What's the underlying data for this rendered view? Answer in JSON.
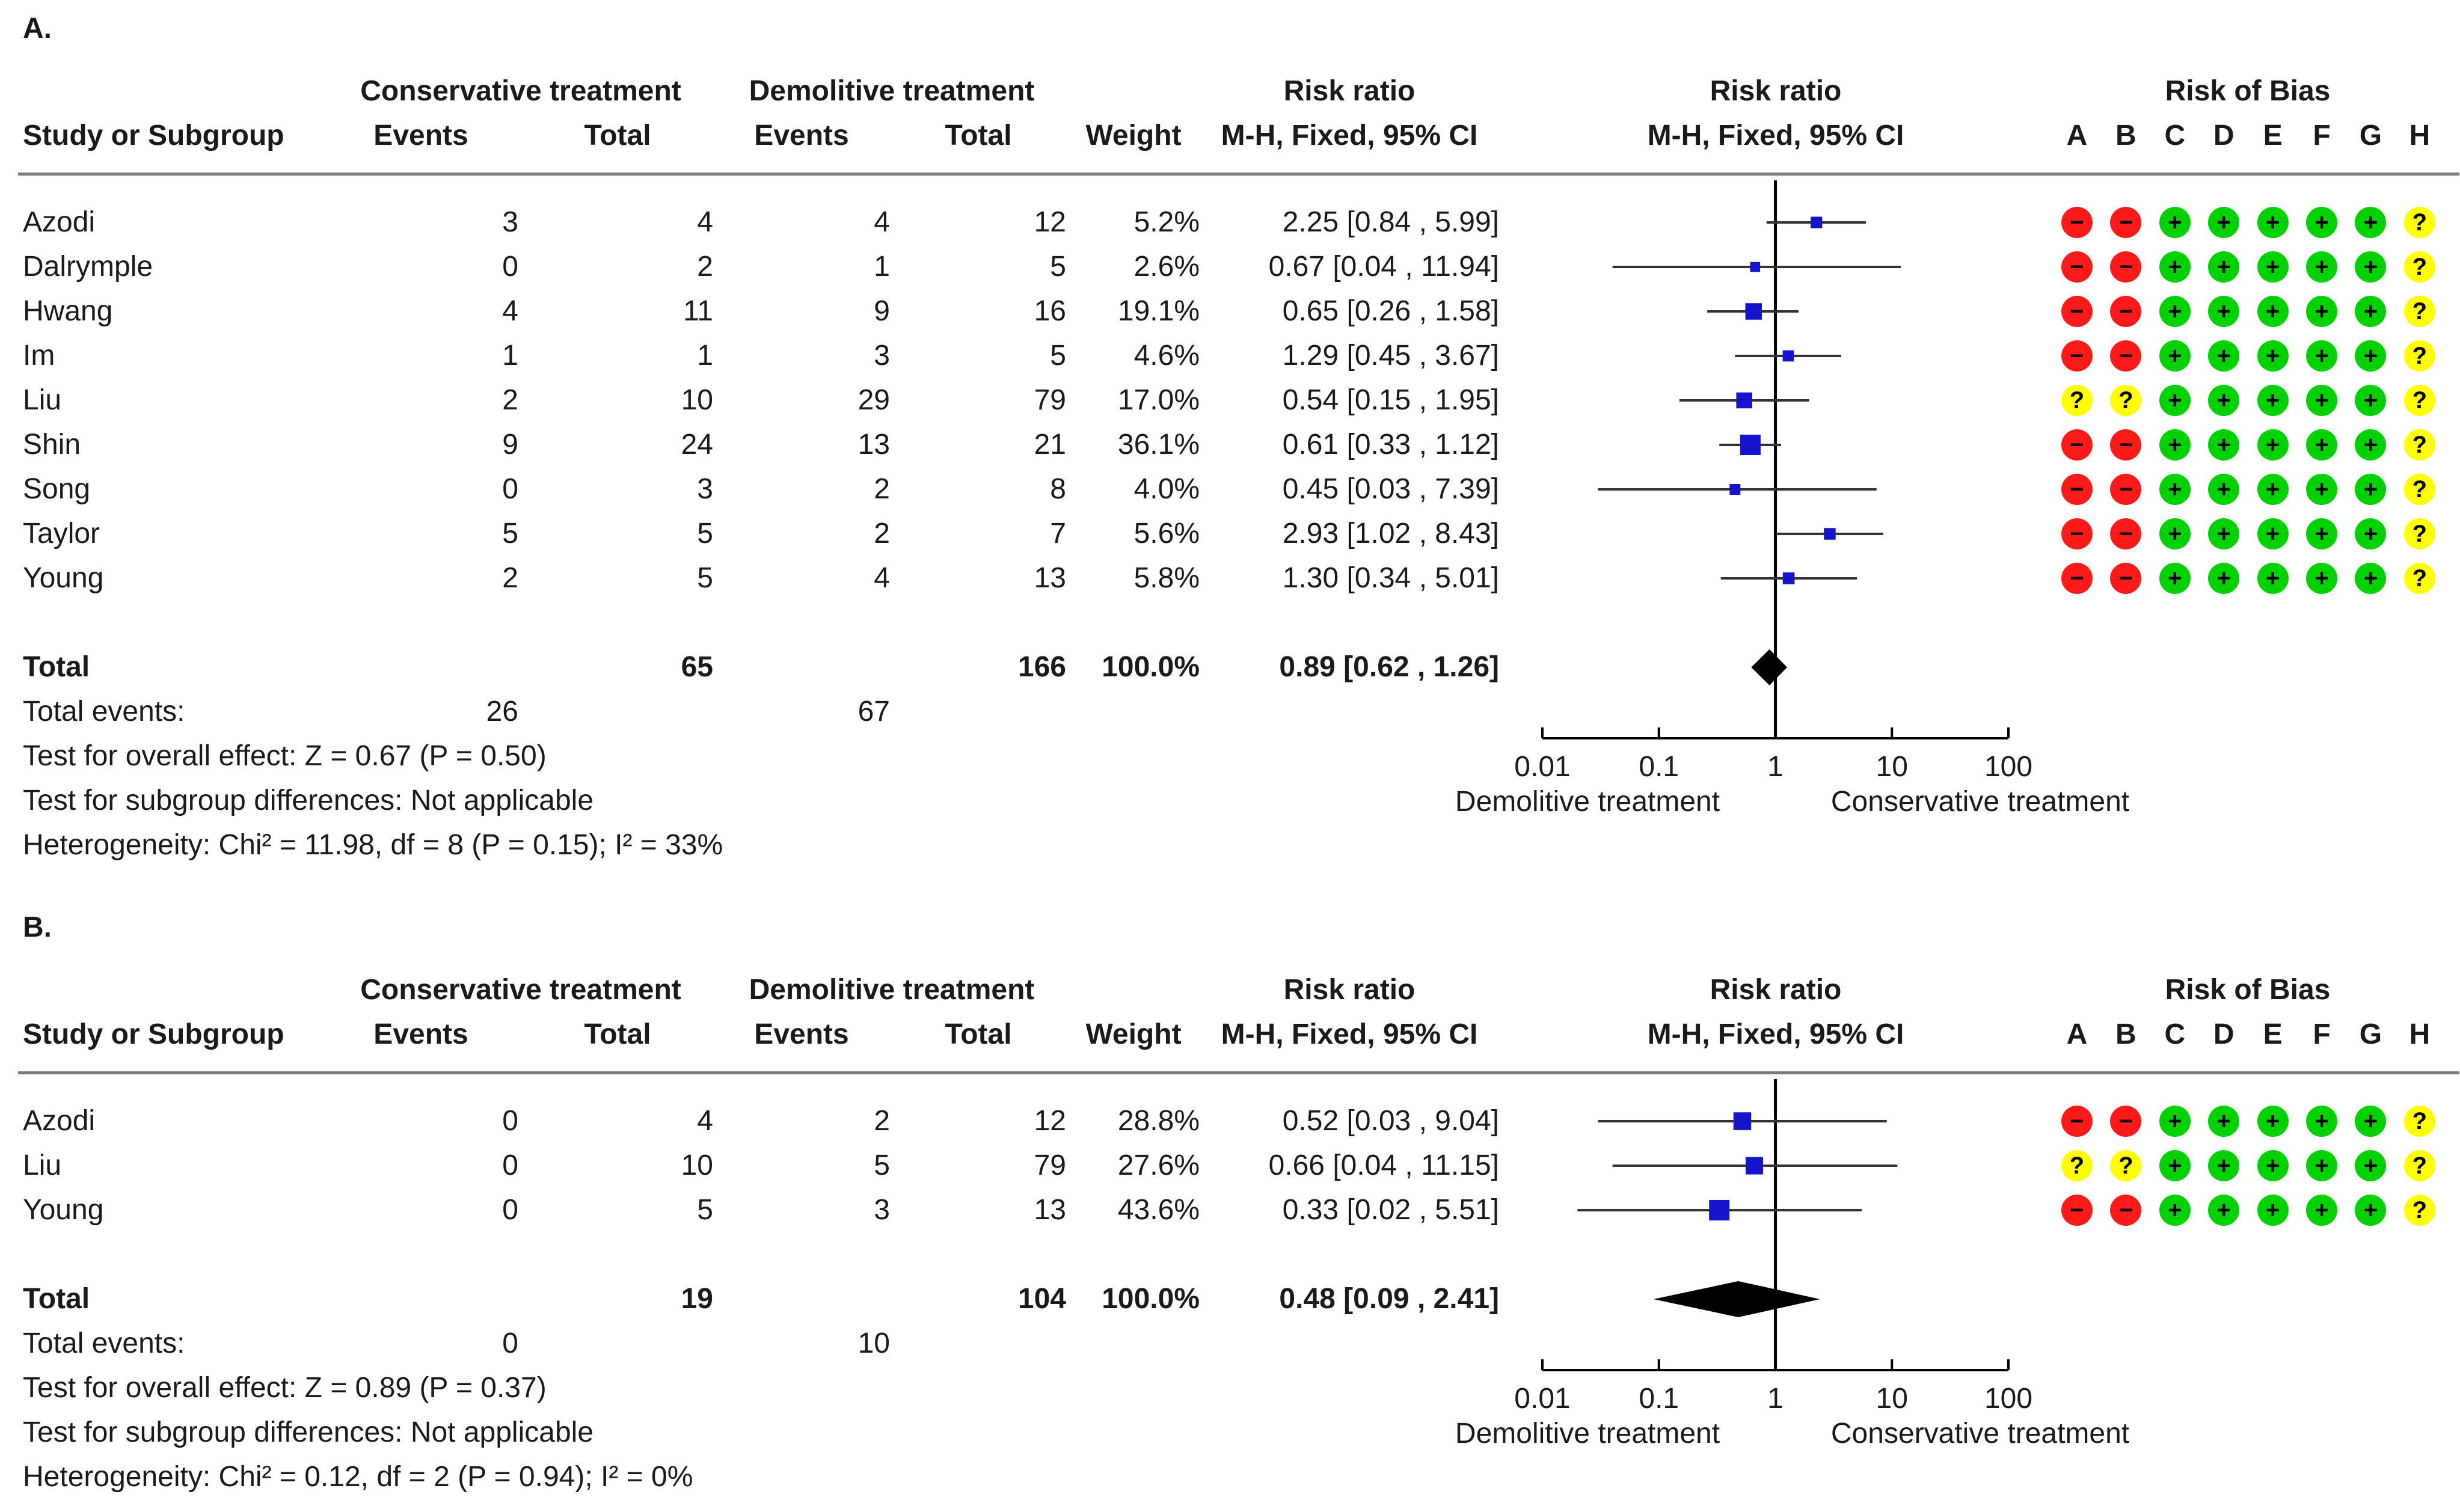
{
  "panels": [
    {
      "id": "A",
      "label": "A.",
      "headers": {
        "group1": "Conservative treatment",
        "group2": "Demolitive treatment",
        "risk_ratio_top": "Risk ratio",
        "plot_top": "Risk ratio",
        "bias_top": "Risk of Bias",
        "study": "Study or Subgroup",
        "events1": "Events",
        "total1": "Total",
        "events2": "Events",
        "total2": "Total",
        "weight": "Weight",
        "method": "M-H, Fixed, 95% CI",
        "plot_method": "M-H, Fixed, 95% CI",
        "bias_cols": [
          "A",
          "B",
          "C",
          "D",
          "E",
          "F",
          "G",
          "H"
        ]
      },
      "studies": [
        {
          "name": "Azodi",
          "e1": "3",
          "n1": "4",
          "e2": "4",
          "n2": "12",
          "weight": "5.2%",
          "ci": "2.25 [0.84 , 5.99]",
          "rr": 2.25,
          "lo": 0.84,
          "hi": 5.99,
          "w": 5.2,
          "bias": [
            "-",
            "-",
            "+",
            "+",
            "+",
            "+",
            "+",
            "?"
          ]
        },
        {
          "name": "Dalrymple",
          "e1": "0",
          "n1": "2",
          "e2": "1",
          "n2": "5",
          "weight": "2.6%",
          "ci": "0.67 [0.04 , 11.94]",
          "rr": 0.67,
          "lo": 0.04,
          "hi": 11.94,
          "w": 2.6,
          "bias": [
            "-",
            "-",
            "+",
            "+",
            "+",
            "+",
            "+",
            "?"
          ]
        },
        {
          "name": "Hwang",
          "e1": "4",
          "n1": "11",
          "e2": "9",
          "n2": "16",
          "weight": "19.1%",
          "ci": "0.65 [0.26 , 1.58]",
          "rr": 0.65,
          "lo": 0.26,
          "hi": 1.58,
          "w": 19.1,
          "bias": [
            "-",
            "-",
            "+",
            "+",
            "+",
            "+",
            "+",
            "?"
          ]
        },
        {
          "name": "Im",
          "e1": "1",
          "n1": "1",
          "e2": "3",
          "n2": "5",
          "weight": "4.6%",
          "ci": "1.29 [0.45 , 3.67]",
          "rr": 1.29,
          "lo": 0.45,
          "hi": 3.67,
          "w": 4.6,
          "bias": [
            "-",
            "-",
            "+",
            "+",
            "+",
            "+",
            "+",
            "?"
          ]
        },
        {
          "name": "Liu",
          "e1": "2",
          "n1": "10",
          "e2": "29",
          "n2": "79",
          "weight": "17.0%",
          "ci": "0.54 [0.15 , 1.95]",
          "rr": 0.54,
          "lo": 0.15,
          "hi": 1.95,
          "w": 17.0,
          "bias": [
            "?",
            "?",
            "+",
            "+",
            "+",
            "+",
            "+",
            "?"
          ]
        },
        {
          "name": "Shin",
          "e1": "9",
          "n1": "24",
          "e2": "13",
          "n2": "21",
          "weight": "36.1%",
          "ci": "0.61 [0.33 , 1.12]",
          "rr": 0.61,
          "lo": 0.33,
          "hi": 1.12,
          "w": 36.1,
          "bias": [
            "-",
            "-",
            "+",
            "+",
            "+",
            "+",
            "+",
            "?"
          ]
        },
        {
          "name": "Song",
          "e1": "0",
          "n1": "3",
          "e2": "2",
          "n2": "8",
          "weight": "4.0%",
          "ci": "0.45 [0.03 , 7.39]",
          "rr": 0.45,
          "lo": 0.03,
          "hi": 7.39,
          "w": 4.0,
          "bias": [
            "-",
            "-",
            "+",
            "+",
            "+",
            "+",
            "+",
            "?"
          ]
        },
        {
          "name": "Taylor",
          "e1": "5",
          "n1": "5",
          "e2": "2",
          "n2": "7",
          "weight": "5.6%",
          "ci": "2.93 [1.02 , 8.43]",
          "rr": 2.93,
          "lo": 1.02,
          "hi": 8.43,
          "w": 5.6,
          "bias": [
            "-",
            "-",
            "+",
            "+",
            "+",
            "+",
            "+",
            "?"
          ]
        },
        {
          "name": "Young",
          "e1": "2",
          "n1": "5",
          "e2": "4",
          "n2": "13",
          "weight": "5.8%",
          "ci": "1.30 [0.34 , 5.01]",
          "rr": 1.3,
          "lo": 0.34,
          "hi": 5.01,
          "w": 5.8,
          "bias": [
            "-",
            "-",
            "+",
            "+",
            "+",
            "+",
            "+",
            "?"
          ]
        }
      ],
      "total": {
        "label": "Total",
        "n1": "65",
        "n2": "166",
        "weight": "100.0%",
        "ci": "0.89 [0.62 , 1.26]",
        "rr": 0.89,
        "lo": 0.62,
        "hi": 1.26
      },
      "total_events": {
        "label": "Total events:",
        "e1": "26",
        "e2": "67"
      },
      "footer": [
        "Test for overall effect: Z = 0.67 (P = 0.50)",
        "Test for subgroup differences: Not applicable",
        "Heterogeneity: Chi² = 11.98, df = 8 (P = 0.15); I² = 33%"
      ],
      "axis": {
        "ticks": [
          "0.01",
          "0.1",
          "1",
          "10",
          "100"
        ],
        "left_label": "Demolitive treatment",
        "right_label": "Conservative treatment"
      }
    },
    {
      "id": "B",
      "label": "B.",
      "headers": {
        "group1": "Conservative treatment",
        "group2": "Demolitive treatment",
        "risk_ratio_top": "Risk ratio",
        "plot_top": "Risk ratio",
        "bias_top": "Risk of Bias",
        "study": "Study or Subgroup",
        "events1": "Events",
        "total1": "Total",
        "events2": "Events",
        "total2": "Total",
        "weight": "Weight",
        "method": "M-H, Fixed, 95% CI",
        "plot_method": "M-H, Fixed, 95% CI",
        "bias_cols": [
          "A",
          "B",
          "C",
          "D",
          "E",
          "F",
          "G",
          "H"
        ]
      },
      "studies": [
        {
          "name": "Azodi",
          "e1": "0",
          "n1": "4",
          "e2": "2",
          "n2": "12",
          "weight": "28.8%",
          "ci": "0.52 [0.03 , 9.04]",
          "rr": 0.52,
          "lo": 0.03,
          "hi": 9.04,
          "w": 28.8,
          "bias": [
            "-",
            "-",
            "+",
            "+",
            "+",
            "+",
            "+",
            "?"
          ]
        },
        {
          "name": "Liu",
          "e1": "0",
          "n1": "10",
          "e2": "5",
          "n2": "79",
          "weight": "27.6%",
          "ci": "0.66 [0.04 , 11.15]",
          "rr": 0.66,
          "lo": 0.04,
          "hi": 11.15,
          "w": 27.6,
          "bias": [
            "?",
            "?",
            "+",
            "+",
            "+",
            "+",
            "+",
            "?"
          ]
        },
        {
          "name": "Young",
          "e1": "0",
          "n1": "5",
          "e2": "3",
          "n2": "13",
          "weight": "43.6%",
          "ci": "0.33 [0.02 , 5.51]",
          "rr": 0.33,
          "lo": 0.02,
          "hi": 5.51,
          "w": 43.6,
          "bias": [
            "-",
            "-",
            "+",
            "+",
            "+",
            "+",
            "+",
            "?"
          ]
        }
      ],
      "total": {
        "label": "Total",
        "n1": "19",
        "n2": "104",
        "weight": "100.0%",
        "ci": "0.48 [0.09 , 2.41]",
        "rr": 0.48,
        "lo": 0.09,
        "hi": 2.41
      },
      "total_events": {
        "label": "Total events:",
        "e1": "0",
        "e2": "10"
      },
      "footer": [
        "Test for overall effect: Z = 0.89 (P = 0.37)",
        "Test for subgroup differences: Not applicable",
        "Heterogeneity: Chi² = 0.12, df = 2 (P = 0.94); I² = 0%"
      ],
      "axis": {
        "ticks": [
          "0.01",
          "0.1",
          "1",
          "10",
          "100"
        ],
        "left_label": "Demolitive treatment",
        "right_label": "Conservative treatment"
      }
    }
  ],
  "chart_data": [
    {
      "type": "forest",
      "title": "A.",
      "scale": "log",
      "xlim": [
        0.01,
        100
      ],
      "xticks": [
        0.01,
        0.1,
        1,
        10,
        100
      ],
      "xlabel_left": "Demolitive treatment",
      "xlabel_right": "Conservative treatment",
      "categories": [
        "Azodi",
        "Dalrymple",
        "Hwang",
        "Im",
        "Liu",
        "Shin",
        "Song",
        "Taylor",
        "Young"
      ],
      "series": [
        {
          "name": "risk_ratio",
          "values": [
            2.25,
            0.67,
            0.65,
            1.29,
            0.54,
            0.61,
            0.45,
            2.93,
            1.3
          ]
        },
        {
          "name": "ci_lower",
          "values": [
            0.84,
            0.04,
            0.26,
            0.45,
            0.15,
            0.33,
            0.03,
            1.02,
            0.34
          ]
        },
        {
          "name": "ci_upper",
          "values": [
            5.99,
            11.94,
            1.58,
            3.67,
            1.95,
            1.12,
            7.39,
            8.43,
            5.01
          ]
        },
        {
          "name": "weight_percent",
          "values": [
            5.2,
            2.6,
            19.1,
            4.6,
            17.0,
            36.1,
            4.0,
            5.6,
            5.8
          ]
        }
      ],
      "pooled": {
        "rr": 0.89,
        "lo": 0.62,
        "hi": 1.26
      }
    },
    {
      "type": "forest",
      "title": "B.",
      "scale": "log",
      "xlim": [
        0.01,
        100
      ],
      "xticks": [
        0.01,
        0.1,
        1,
        10,
        100
      ],
      "xlabel_left": "Demolitive treatment",
      "xlabel_right": "Conservative treatment",
      "categories": [
        "Azodi",
        "Liu",
        "Young"
      ],
      "series": [
        {
          "name": "risk_ratio",
          "values": [
            0.52,
            0.66,
            0.33
          ]
        },
        {
          "name": "ci_lower",
          "values": [
            0.03,
            0.04,
            0.02
          ]
        },
        {
          "name": "ci_upper",
          "values": [
            9.04,
            11.15,
            5.51
          ]
        },
        {
          "name": "weight_percent",
          "values": [
            28.8,
            27.6,
            43.6
          ]
        }
      ],
      "pooled": {
        "rr": 0.48,
        "lo": 0.09,
        "hi": 2.41
      }
    }
  ],
  "colors": {
    "marker": "#1414cc",
    "ci_line": "#333333",
    "diamond": "#000000",
    "bias_low": "#00d100",
    "bias_high": "#ff1a1a",
    "bias_unclear": "#ffff00"
  }
}
